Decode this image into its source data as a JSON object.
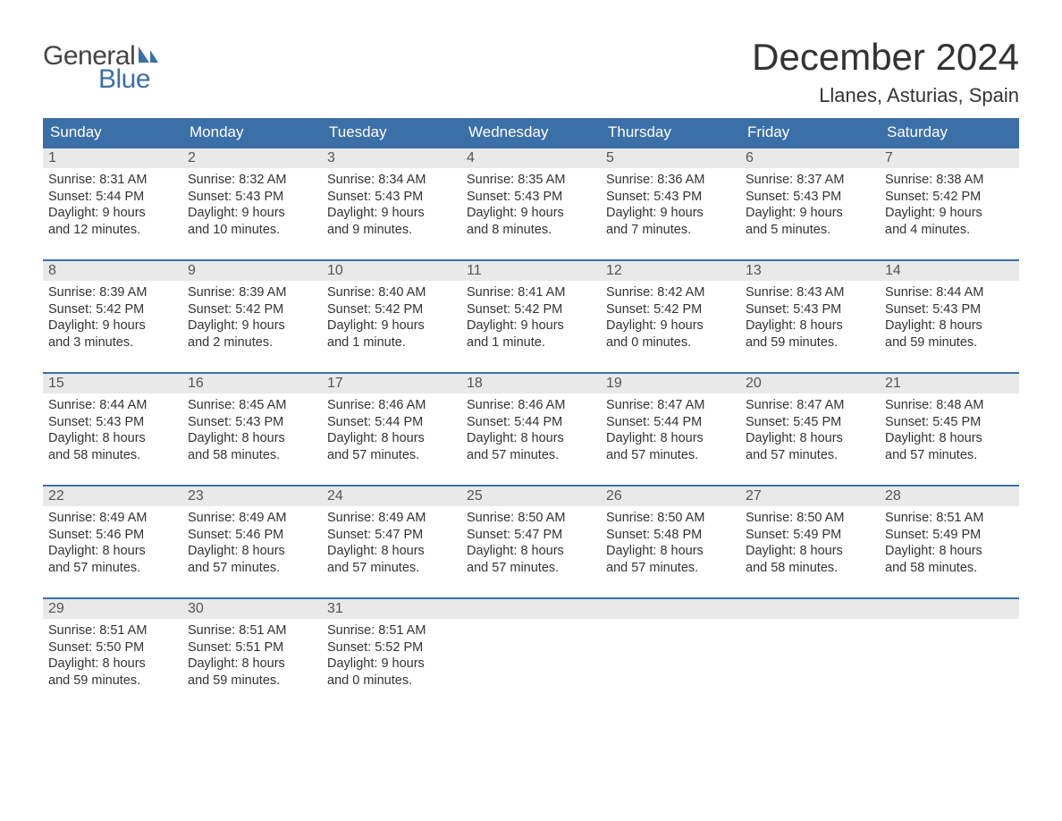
{
  "logo": {
    "text_general": "General",
    "text_blue": "Blue"
  },
  "title": "December 2024",
  "location": "Llanes, Asturias, Spain",
  "colors": {
    "header_bg": "#3b6fa8",
    "header_text": "#ffffff",
    "daynum_bg": "#e9e9e9",
    "row_border": "#3b6fa8",
    "body_text": "#333333",
    "logo_blue": "#3b6fa8",
    "logo_general": "#444444",
    "page_bg": "#ffffff"
  },
  "weekday_headers": [
    "Sunday",
    "Monday",
    "Tuesday",
    "Wednesday",
    "Thursday",
    "Friday",
    "Saturday"
  ],
  "weeks": [
    [
      {
        "day": "1",
        "sunrise": "Sunrise: 8:31 AM",
        "sunset": "Sunset: 5:44 PM",
        "dl1": "Daylight: 9 hours",
        "dl2": "and 12 minutes."
      },
      {
        "day": "2",
        "sunrise": "Sunrise: 8:32 AM",
        "sunset": "Sunset: 5:43 PM",
        "dl1": "Daylight: 9 hours",
        "dl2": "and 10 minutes."
      },
      {
        "day": "3",
        "sunrise": "Sunrise: 8:34 AM",
        "sunset": "Sunset: 5:43 PM",
        "dl1": "Daylight: 9 hours",
        "dl2": "and 9 minutes."
      },
      {
        "day": "4",
        "sunrise": "Sunrise: 8:35 AM",
        "sunset": "Sunset: 5:43 PM",
        "dl1": "Daylight: 9 hours",
        "dl2": "and 8 minutes."
      },
      {
        "day": "5",
        "sunrise": "Sunrise: 8:36 AM",
        "sunset": "Sunset: 5:43 PM",
        "dl1": "Daylight: 9 hours",
        "dl2": "and 7 minutes."
      },
      {
        "day": "6",
        "sunrise": "Sunrise: 8:37 AM",
        "sunset": "Sunset: 5:43 PM",
        "dl1": "Daylight: 9 hours",
        "dl2": "and 5 minutes."
      },
      {
        "day": "7",
        "sunrise": "Sunrise: 8:38 AM",
        "sunset": "Sunset: 5:42 PM",
        "dl1": "Daylight: 9 hours",
        "dl2": "and 4 minutes."
      }
    ],
    [
      {
        "day": "8",
        "sunrise": "Sunrise: 8:39 AM",
        "sunset": "Sunset: 5:42 PM",
        "dl1": "Daylight: 9 hours",
        "dl2": "and 3 minutes."
      },
      {
        "day": "9",
        "sunrise": "Sunrise: 8:39 AM",
        "sunset": "Sunset: 5:42 PM",
        "dl1": "Daylight: 9 hours",
        "dl2": "and 2 minutes."
      },
      {
        "day": "10",
        "sunrise": "Sunrise: 8:40 AM",
        "sunset": "Sunset: 5:42 PM",
        "dl1": "Daylight: 9 hours",
        "dl2": "and 1 minute."
      },
      {
        "day": "11",
        "sunrise": "Sunrise: 8:41 AM",
        "sunset": "Sunset: 5:42 PM",
        "dl1": "Daylight: 9 hours",
        "dl2": "and 1 minute."
      },
      {
        "day": "12",
        "sunrise": "Sunrise: 8:42 AM",
        "sunset": "Sunset: 5:42 PM",
        "dl1": "Daylight: 9 hours",
        "dl2": "and 0 minutes."
      },
      {
        "day": "13",
        "sunrise": "Sunrise: 8:43 AM",
        "sunset": "Sunset: 5:43 PM",
        "dl1": "Daylight: 8 hours",
        "dl2": "and 59 minutes."
      },
      {
        "day": "14",
        "sunrise": "Sunrise: 8:44 AM",
        "sunset": "Sunset: 5:43 PM",
        "dl1": "Daylight: 8 hours",
        "dl2": "and 59 minutes."
      }
    ],
    [
      {
        "day": "15",
        "sunrise": "Sunrise: 8:44 AM",
        "sunset": "Sunset: 5:43 PM",
        "dl1": "Daylight: 8 hours",
        "dl2": "and 58 minutes."
      },
      {
        "day": "16",
        "sunrise": "Sunrise: 8:45 AM",
        "sunset": "Sunset: 5:43 PM",
        "dl1": "Daylight: 8 hours",
        "dl2": "and 58 minutes."
      },
      {
        "day": "17",
        "sunrise": "Sunrise: 8:46 AM",
        "sunset": "Sunset: 5:44 PM",
        "dl1": "Daylight: 8 hours",
        "dl2": "and 57 minutes."
      },
      {
        "day": "18",
        "sunrise": "Sunrise: 8:46 AM",
        "sunset": "Sunset: 5:44 PM",
        "dl1": "Daylight: 8 hours",
        "dl2": "and 57 minutes."
      },
      {
        "day": "19",
        "sunrise": "Sunrise: 8:47 AM",
        "sunset": "Sunset: 5:44 PM",
        "dl1": "Daylight: 8 hours",
        "dl2": "and 57 minutes."
      },
      {
        "day": "20",
        "sunrise": "Sunrise: 8:47 AM",
        "sunset": "Sunset: 5:45 PM",
        "dl1": "Daylight: 8 hours",
        "dl2": "and 57 minutes."
      },
      {
        "day": "21",
        "sunrise": "Sunrise: 8:48 AM",
        "sunset": "Sunset: 5:45 PM",
        "dl1": "Daylight: 8 hours",
        "dl2": "and 57 minutes."
      }
    ],
    [
      {
        "day": "22",
        "sunrise": "Sunrise: 8:49 AM",
        "sunset": "Sunset: 5:46 PM",
        "dl1": "Daylight: 8 hours",
        "dl2": "and 57 minutes."
      },
      {
        "day": "23",
        "sunrise": "Sunrise: 8:49 AM",
        "sunset": "Sunset: 5:46 PM",
        "dl1": "Daylight: 8 hours",
        "dl2": "and 57 minutes."
      },
      {
        "day": "24",
        "sunrise": "Sunrise: 8:49 AM",
        "sunset": "Sunset: 5:47 PM",
        "dl1": "Daylight: 8 hours",
        "dl2": "and 57 minutes."
      },
      {
        "day": "25",
        "sunrise": "Sunrise: 8:50 AM",
        "sunset": "Sunset: 5:47 PM",
        "dl1": "Daylight: 8 hours",
        "dl2": "and 57 minutes."
      },
      {
        "day": "26",
        "sunrise": "Sunrise: 8:50 AM",
        "sunset": "Sunset: 5:48 PM",
        "dl1": "Daylight: 8 hours",
        "dl2": "and 57 minutes."
      },
      {
        "day": "27",
        "sunrise": "Sunrise: 8:50 AM",
        "sunset": "Sunset: 5:49 PM",
        "dl1": "Daylight: 8 hours",
        "dl2": "and 58 minutes."
      },
      {
        "day": "28",
        "sunrise": "Sunrise: 8:51 AM",
        "sunset": "Sunset: 5:49 PM",
        "dl1": "Daylight: 8 hours",
        "dl2": "and 58 minutes."
      }
    ],
    [
      {
        "day": "29",
        "sunrise": "Sunrise: 8:51 AM",
        "sunset": "Sunset: 5:50 PM",
        "dl1": "Daylight: 8 hours",
        "dl2": "and 59 minutes."
      },
      {
        "day": "30",
        "sunrise": "Sunrise: 8:51 AM",
        "sunset": "Sunset: 5:51 PM",
        "dl1": "Daylight: 8 hours",
        "dl2": "and 59 minutes."
      },
      {
        "day": "31",
        "sunrise": "Sunrise: 8:51 AM",
        "sunset": "Sunset: 5:52 PM",
        "dl1": "Daylight: 9 hours",
        "dl2": "and 0 minutes."
      },
      {
        "empty": true
      },
      {
        "empty": true
      },
      {
        "empty": true
      },
      {
        "empty": true
      }
    ]
  ]
}
